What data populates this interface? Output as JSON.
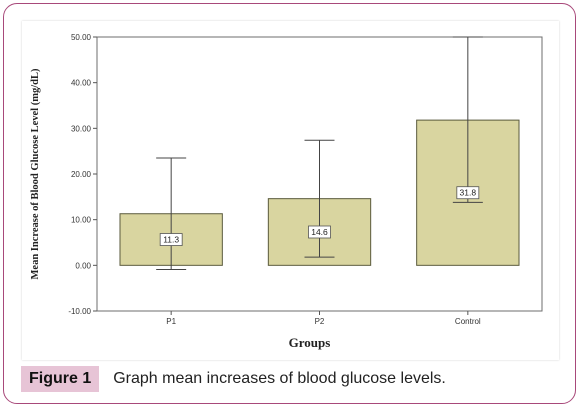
{
  "figure": {
    "tag": "Figure 1",
    "caption": "Graph mean increases of blood glucose levels."
  },
  "colors": {
    "frame_border": "#a8497a",
    "caption_tag_bg": "#e7c4d6",
    "bar_fill": "#d9d5a0",
    "bar_stroke": "#5a5a3c",
    "error_bar": "#444444"
  },
  "chart_data": {
    "type": "bar",
    "categories": [
      "P1",
      "P2",
      "Control"
    ],
    "values": [
      11.3,
      14.6,
      31.8
    ],
    "data_labels": [
      "11.3",
      "14.6",
      "31.8"
    ],
    "error_bars": [
      {
        "lower": -0.9,
        "upper": 23.5
      },
      {
        "lower": 1.8,
        "upper": 27.4
      },
      {
        "lower": 13.8,
        "upper": 50.0
      }
    ],
    "xlabel": "Groups",
    "ylabel": "Mean Increase of Blood Glucose Level (mg/dL)",
    "ylim": [
      -10,
      50
    ],
    "yticks": [
      -10,
      0,
      10,
      20,
      30,
      40,
      50
    ],
    "ytick_labels": [
      "-10.00",
      "0.00",
      "10.00",
      "20.00",
      "30.00",
      "40.00",
      "50.00"
    ],
    "grid": false
  }
}
